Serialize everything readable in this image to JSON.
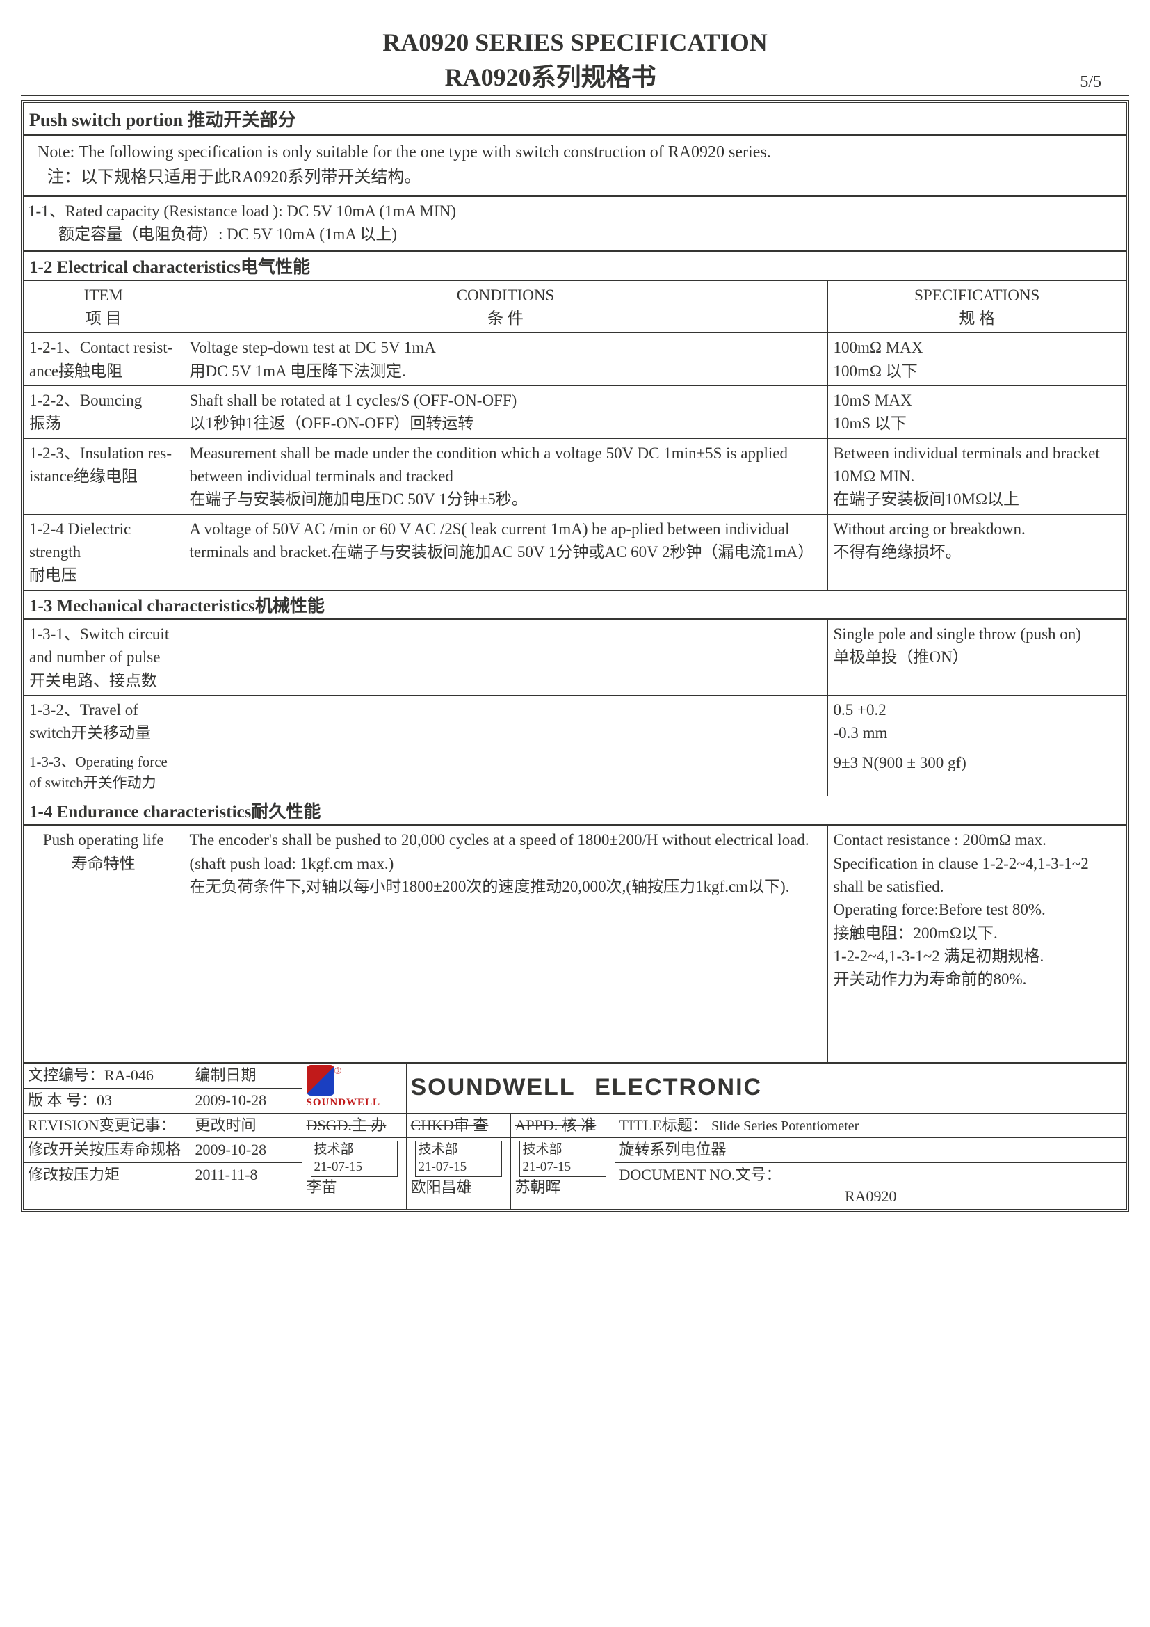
{
  "header": {
    "title_en": "RA0920  SERIES SPECIFICATION",
    "title_cn": "RA0920系列规格书",
    "page": "5/5"
  },
  "push_head": "Push switch portion 推动开关部分",
  "note": {
    "l1": "Note: The following specification is only suitable for the one type with switch construction of  RA0920  series.",
    "l2": "注：以下规格只适用于此RA0920系列带开关结构。"
  },
  "rated": {
    "l1": "1-1、Rated capacity (Resistance load ): DC 5V 10mA (1mA MIN)",
    "l2": "额定容量（电阻负荷）: DC 5V 10mA (1mA 以上)"
  },
  "s12_head": "1-2  Electrical characteristics电气性能",
  "th": {
    "item": "ITEM",
    "item_cn": "项  目",
    "cond": "CONDITIONS",
    "cond_cn": "条  件",
    "spec": "SPECIFICATIONS",
    "spec_cn": "规  格"
  },
  "r121": {
    "item": "1-2-1、Contact resist-\nance接触电阻",
    "cond": "Voltage step-down test at DC 5V 1mA\n用DC 5V 1mA 电压降下法测定.",
    "spec": "100mΩ MAX\n100mΩ  以下"
  },
  "r122": {
    "item": "1-2-2、Bouncing\n          振荡",
    "cond": "Shaft shall be rotated at 1 cycles/S (OFF-ON-OFF)\n以1秒钟1往返（OFF-ON-OFF）回转运转",
    "spec": "10mS MAX\n10mS  以下"
  },
  "r123": {
    "item": "1-2-3、Insulation res-\nistance绝缘电阻",
    "cond": "Measurement shall be made under the condition which a voltage 50V DC 1min±5S is applied between individual terminals and tracked\n在端子与安装板间施加电压DC 50V 1分钟±5秒。",
    "spec": "Between individual terminals and bracket 10MΩ MIN.\n在端子安装板间10MΩ以上"
  },
  "r124": {
    "item": "1-2-4 Dielectric\n        strength\n        耐电压",
    "cond": "A voltage of 50V AC /min or 60 V AC /2S( leak current 1mA) be ap-plied between individual terminals and bracket.在端子与安装板间施加AC 50V 1分钟或AC 60V 2秒钟（漏电流1mA）",
    "spec": "Without arcing or breakdown.\n不得有绝缘损坏。"
  },
  "s13_head": "1-3 Mechanical characteristics机械性能",
  "r131": {
    "item": "1-3-1、Switch circuit and number of pulse\n开关电路、接点数",
    "cond": "",
    "spec": "Single pole and single throw (push on)\n单极单投（推ON）"
  },
  "r132": {
    "item": "1-3-2、Travel of switch开关移动量",
    "cond": "",
    "spec": "0.5 +0.2\n       -0.3 mm"
  },
  "r133": {
    "item": "1-3-3、Operating force of switch开关作动力",
    "cond": "",
    "spec": " 9±3  N(900 ± 300 gf)"
  },
  "s14_head": "1-4 Endurance characteristics耐久性能",
  "r14": {
    "item": "Push operating life\n寿命特性",
    "cond": "The encoder's shall be pushed to 20,000 cycles at a speed of 1800±200/H without electrical load.(shaft push load: 1kgf.cm max.)\n在无负荷条件下,对轴以每小时1800±200次的速度推动20,000次,(轴按压力1kgf.cm以下).",
    "spec": "Contact resistance : 200mΩ max.\nSpecification in clause 1-2-2~4,1-3-1~2 shall be satisfied.\nOperating force:Before test 80%.\n接触电阻：200mΩ以下.\n1-2-2~4,1-3-1~2 满足初期规格.\n开关动作力为寿命前的80%."
  },
  "foot": {
    "docno_label": "文控编号：",
    "docno": "RA-046",
    "ver_label": "版 本 号：",
    "ver": "03",
    "compile_date_label": "编制日期",
    "compile_date": "2009-10-28",
    "brand1": "SOUNDWELL",
    "brand2": "ELECTRONIC",
    "logo_txt": "SOUNDWELL",
    "rev_label": "REVISION变更记事：",
    "change_time_label": "更改时间",
    "change1": "修改开关按压寿命规格",
    "date1": "2009-10-28",
    "change2": "修改按压力矩",
    "date2": "2011-11-8",
    "dsgd": "DSGD.主  办",
    "chkd": "CHKD审   查",
    "appd": "APPD. 核  准",
    "dept": "技术部",
    "sigdate": "21-07-15",
    "name1": "李苗",
    "name2": "欧阳昌雄",
    "name3": "苏朝晖",
    "title_label": "TITLE标题：",
    "title_val": "Slide Series Potentiometer",
    "title_cn": "旋转系列电位器",
    "docnum_label": "DOCUMENT NO.文号：",
    "docnum": "RA0920"
  },
  "colors": {
    "text": "#353533",
    "logo_red": "#c11a1a"
  }
}
